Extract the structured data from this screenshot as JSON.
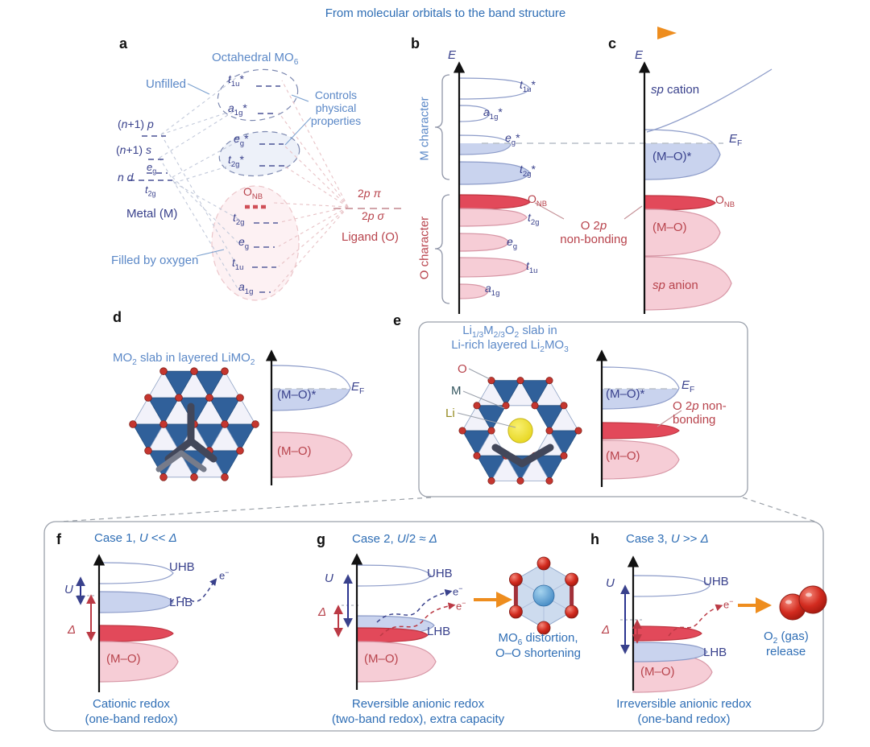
{
  "colors": {
    "accent_blue": "#2f6eb5",
    "light_blue_text": "#5b88c7",
    "navy_text": "#39418c",
    "red_text": "#b8434c",
    "band_blue": "#c9d3ee",
    "band_blue_stroke": "#8d9cc9",
    "band_pink": "#f6cdd6",
    "band_pink_stroke": "#d797a6",
    "band_red": "#e2495a",
    "band_red_stroke": "#bf3440",
    "crystal_blue": "#30609a",
    "crystal_white": "#f2f2fa",
    "oxygen_red": "#c5362f",
    "li_yellow": "#f3e12c",
    "orange": "#ee8d1e",
    "axis_black": "#111111",
    "dash_gray": "#b9bfc9"
  },
  "banner": {
    "title": "From molecular orbitals to the band structure"
  },
  "panel_a": {
    "letter": "a",
    "title": "Octahedral MO<sub>6</sub>",
    "unfilled": "Unfilled",
    "controls": "Controls<br>physical<br>properties",
    "metal_p": "(<i>n</i>+1) <i>p</i>",
    "metal_s": "(<i>n</i>+1) <i>s</i>",
    "metal_eg": "<i>e</i><sub>g</sub>",
    "metal_nd": "<i>n d</i>",
    "metal_t2g": "<i>t</i><sub>2g</sub>",
    "metal": "Metal (M)",
    "filled": "Filled by oxygen",
    "mo_upper": [
      "<i>t</i><sub>1u</sub>*",
      "<i>a</i><sub>1g</sub>*",
      "<i>e</i><sub>g</sub>*",
      "<i>t</i><sub>2g</sub>*"
    ],
    "mo_lower": [
      "O<sub>NB</sub>",
      "<i>t</i><sub>2g</sub>",
      "<i>e</i><sub>g</sub>",
      "<i>t</i><sub>1u</sub>",
      "<i>a</i><sub>1g</sub>"
    ],
    "ligand_pi": "2<i>p π</i>",
    "ligand_sigma": "2<i>p σ</i>",
    "ligand": "Ligand (O)"
  },
  "panel_b": {
    "letter": "b",
    "axis": "<i>E</i>",
    "m_character": "M character",
    "o_character": "O character",
    "bands": [
      "<i>t</i><sub>1u</sub>*",
      "<i>a</i><sub>1g</sub>*",
      "<i>e</i><sub>g</sub>*",
      "<i>t</i><sub>2g</sub>*",
      "O<sub>NB</sub>",
      "<i>t</i><sub>2g</sub>",
      "<i>e</i><sub>g</sub>",
      "<i>t</i><sub>1u</sub>",
      "<i>a</i><sub>1g</sub>"
    ],
    "nonbonding": "O 2<i>p</i><br>non-bonding"
  },
  "panel_c": {
    "letter": "c",
    "axis": "<i>E</i>",
    "sp_cation": "<i>sp</i> cation",
    "ef": "<i>E</i><sub>F</sub>",
    "mo_star": "(M–O)*",
    "onb": "O<sub>NB</sub>",
    "mo": "(M–O)",
    "sp_anion": "<i>sp</i> anion"
  },
  "panel_d": {
    "letter": "d",
    "title": "MO<sub>2</sub> slab in layered LiMO<sub>2</sub>",
    "ef": "<i>E</i><sub>F</sub>",
    "mo_star": "(M–O)*",
    "mo": "(M–O)"
  },
  "panel_e": {
    "letter": "e",
    "title1": "Li<sub>1/3</sub>M<sub>2/3</sub>O<sub>2</sub> slab in",
    "title2": "Li-rich layered Li<sub>2</sub>MO<sub>3</sub>",
    "legend_o": "O",
    "legend_m": "M",
    "legend_li": "Li",
    "ef": "<i>E</i><sub>F</sub>",
    "mo_star": "(M–O)*",
    "nonbonding": "O 2<i>p</i> non-<br>bonding",
    "mo": "(M–O)"
  },
  "panel_f": {
    "letter": "f",
    "case_title": "Case 1, <i>U</i> &lt;&lt; <i>Δ</i>",
    "u": "<i>U</i>",
    "delta": "<i>Δ</i>",
    "uhb": "UHB",
    "lhb": "LHB",
    "mo": "(M–O)",
    "electron": "e<sup>−</sup>",
    "caption1": "Cationic redox",
    "caption2": "(one-band redox)"
  },
  "panel_g": {
    "letter": "g",
    "case_title": "Case 2, <i>U</i>/2 ≈ <i>Δ</i>",
    "u": "<i>U</i>",
    "delta": "<i>Δ</i>",
    "uhb": "UHB",
    "lhb": "LHB",
    "mo": "(M–O)",
    "electron_blue": "e<sup>−</sup>",
    "electron_red": "e<sup>−</sup>",
    "note1": "MO<sub>6</sub> distortion,",
    "note2": "O–O shortening",
    "caption1": "Reversible anionic redox",
    "caption2": "(two-band redox), extra capacity"
  },
  "panel_h": {
    "letter": "h",
    "case_title": "Case 3, <i>U</i> &gt;&gt; <i>Δ</i>",
    "u": "<i>U</i>",
    "delta": "<i>Δ</i>",
    "uhb": "UHB",
    "lhb": "LHB",
    "mo": "(M–O)",
    "electron": "e<sup>−</sup>",
    "note1": "O<sub>2</sub> (gas)",
    "note2": "release",
    "caption1": "Irreversible anionic redox",
    "caption2": "(one-band redox)"
  }
}
